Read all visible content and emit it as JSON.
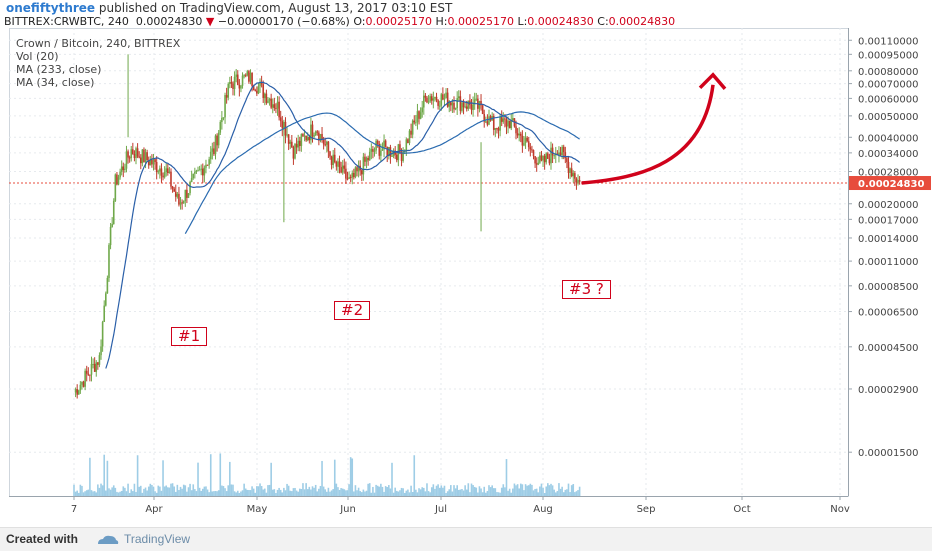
{
  "header": {
    "username": "onefiftythree",
    "published_text": " published on TradingView.com, August 13, 2017 03:10 EST",
    "symbol": "BITTREX:CRWBTC, 240",
    "last": "0.00024830",
    "arrow": "▼",
    "change": "−0.00000170 (−0.68%)",
    "o_label": "O:",
    "o_val": "0.00025170",
    "h_label": "H:",
    "h_val": "0.00025170",
    "l_label": "L:",
    "l_val": "0.00024830",
    "c_label": "C:",
    "c_val": "0.00024830"
  },
  "legend": {
    "title": "Crown / Bitcoin, 240, BITTREX",
    "vol": "Vol (20)",
    "ma1": "MA (233, close)",
    "ma2": "MA (34, close)"
  },
  "annotations": {
    "p1": "#1",
    "p2": "#2",
    "p3": "#3 ?"
  },
  "footer": {
    "created": "Created with",
    "brand": "TradingView"
  },
  "colors": {
    "up": "#6fa84a",
    "down": "#c0392b",
    "ma233": "#2a6bb0",
    "ma34": "#2a5fa8",
    "annotation": "#d0021b",
    "volume": "#9ecde6",
    "last_price_tag": "#e74c3c"
  },
  "chart_data": {
    "type": "candlestick",
    "title": "Crown / Bitcoin, 240, BITTREX",
    "y_scale": "log",
    "yticks": [
      "0.00110000",
      "0.00095000",
      "0.00080000",
      "0.00070000",
      "0.00060000",
      "0.00050000",
      "0.00040000",
      "0.00034000",
      "0.00028000",
      "0.00024830",
      "0.00020000",
      "0.00017000",
      "0.00014000",
      "0.00011000",
      "0.00008500",
      "0.00006500",
      "0.00004500",
      "0.00002900",
      "0.00001500"
    ],
    "x_tick_labels": [
      "7",
      "Apr",
      "May",
      "Jun",
      "Jul",
      "Aug",
      "Sep",
      "Oct",
      "Nov"
    ],
    "last_price": "0.00024830",
    "approx_close_path": [
      {
        "date": "Mar 7",
        "close": 2.8e-05
      },
      {
        "date": "Mar 15",
        "close": 4e-05
      },
      {
        "date": "Mar 20",
        "close": 0.00025
      },
      {
        "date": "Mar 25",
        "close": 0.00035
      },
      {
        "date": "Apr 5",
        "close": 0.00028
      },
      {
        "date": "Apr 9",
        "close": 0.0002
      },
      {
        "date": "Apr 20",
        "close": 0.00035
      },
      {
        "date": "Apr 25",
        "close": 0.0007
      },
      {
        "date": "May 1",
        "close": 0.00075
      },
      {
        "date": "May 10",
        "close": 0.00055
      },
      {
        "date": "May 15",
        "close": 0.00035
      },
      {
        "date": "May 22",
        "close": 0.00045
      },
      {
        "date": "May 28",
        "close": 0.0003
      },
      {
        "date": "Jun 2",
        "close": 0.00025
      },
      {
        "date": "Jun 10",
        "close": 0.00036
      },
      {
        "date": "Jun 18",
        "close": 0.00034
      },
      {
        "date": "Jun 26",
        "close": 0.00062
      },
      {
        "date": "Jul 5",
        "close": 0.00058
      },
      {
        "date": "Jul 12",
        "close": 0.00055
      },
      {
        "date": "Jul 17",
        "close": 0.00045
      },
      {
        "date": "Jul 22",
        "close": 0.00047
      },
      {
        "date": "Aug 1",
        "close": 0.0003
      },
      {
        "date": "Aug 6",
        "close": 0.00036
      },
      {
        "date": "Aug 13",
        "close": 0.0002483
      }
    ],
    "annotations_arrow_target": 0.0008
  }
}
